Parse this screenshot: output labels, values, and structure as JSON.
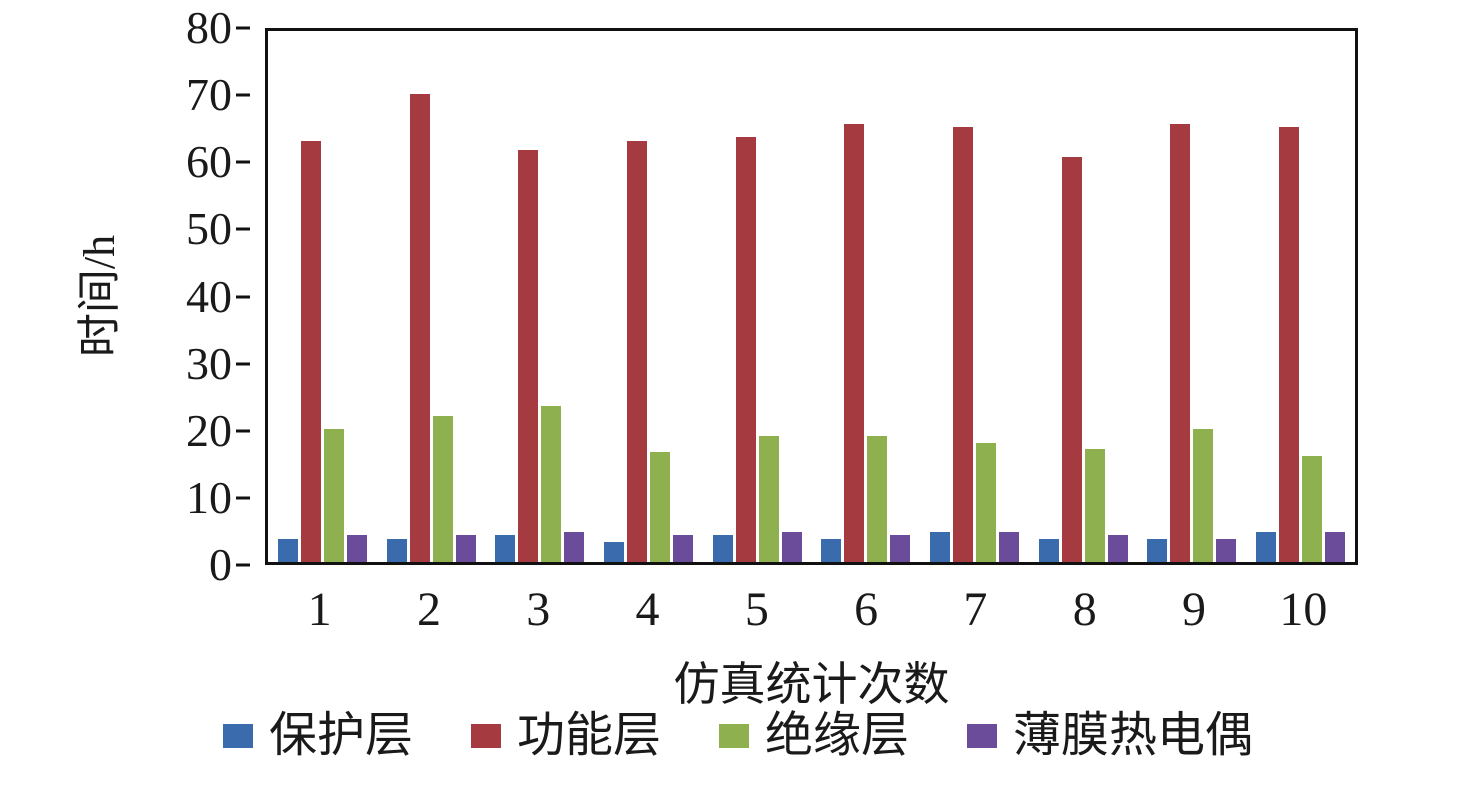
{
  "chart_data": {
    "type": "bar",
    "title": "",
    "xlabel": "仿真统计次数",
    "ylabel": "时间/h",
    "categories": [
      "1",
      "2",
      "3",
      "4",
      "5",
      "6",
      "7",
      "8",
      "9",
      "10"
    ],
    "series": [
      {
        "name": "保护层",
        "color": "#3A6CAD",
        "values": [
          3.5,
          3.5,
          4.0,
          3.0,
          4.0,
          3.5,
          4.5,
          3.5,
          3.5,
          4.5
        ]
      },
      {
        "name": "功能层",
        "color": "#A53A40",
        "values": [
          63.5,
          70.5,
          62.0,
          63.5,
          64.0,
          66.0,
          65.5,
          61.0,
          66.0,
          65.5
        ]
      },
      {
        "name": "绝缘层",
        "color": "#8FB04E",
        "values": [
          20.0,
          22.0,
          23.5,
          16.5,
          19.0,
          19.0,
          18.0,
          17.0,
          20.0,
          16.0
        ]
      },
      {
        "name": "薄膜热电偶",
        "color": "#6A4C9B",
        "values": [
          4.0,
          4.0,
          4.5,
          4.0,
          4.5,
          4.0,
          4.5,
          4.0,
          3.5,
          4.5
        ]
      }
    ],
    "ylim": [
      0,
      80
    ],
    "yticks": [
      0,
      10,
      20,
      30,
      40,
      50,
      60,
      70,
      80
    ],
    "grid": false,
    "legend_position": "bottom",
    "axis_color": "#111111",
    "background_color": "#ffffff"
  }
}
